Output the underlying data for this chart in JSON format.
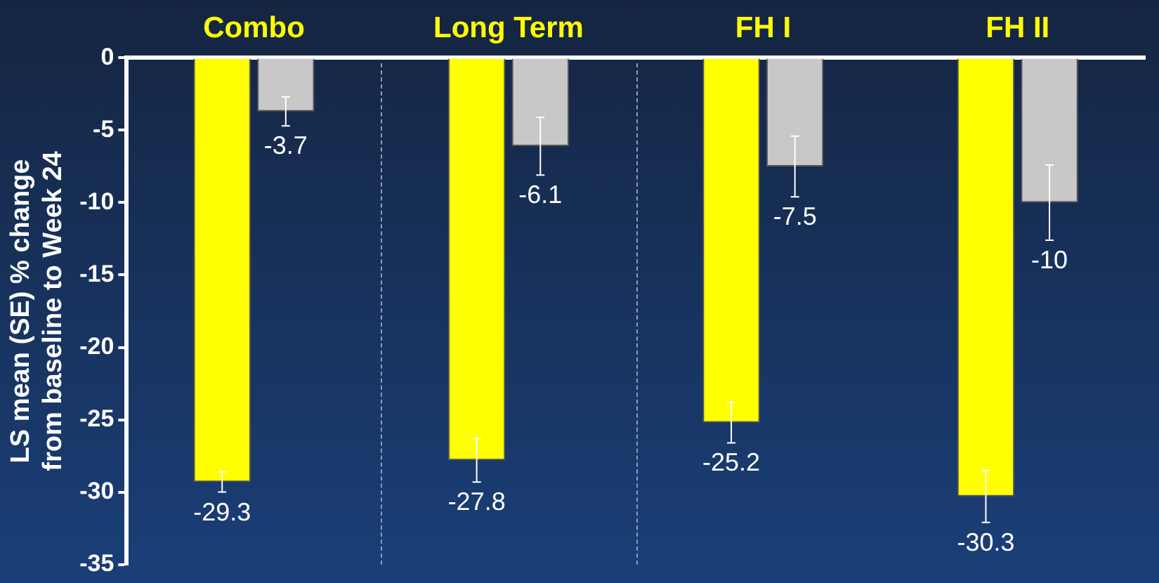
{
  "chart_data": {
    "type": "bar",
    "ylabel": "LS mean (SE) % change from baseline to Week 24",
    "categories": [
      "Combo",
      "Long Term",
      "FH I",
      "FH II"
    ],
    "series": [
      {
        "color": "#ffff00",
        "values": [
          -29.3,
          -27.8,
          -25.2,
          -30.3
        ],
        "errors": [
          0.7,
          1.5,
          1.4,
          1.8
        ]
      },
      {
        "color": "#c8c8c8",
        "values": [
          -3.7,
          -6.1,
          -7.5,
          -10
        ],
        "errors": [
          1.0,
          2.0,
          2.1,
          2.6
        ]
      }
    ],
    "ylim": [
      -35,
      0
    ],
    "yticks": [
      -35,
      -30,
      -25,
      -20,
      -15,
      -10,
      -5,
      0
    ],
    "grid": false,
    "legend": false,
    "data_labels": true
  }
}
